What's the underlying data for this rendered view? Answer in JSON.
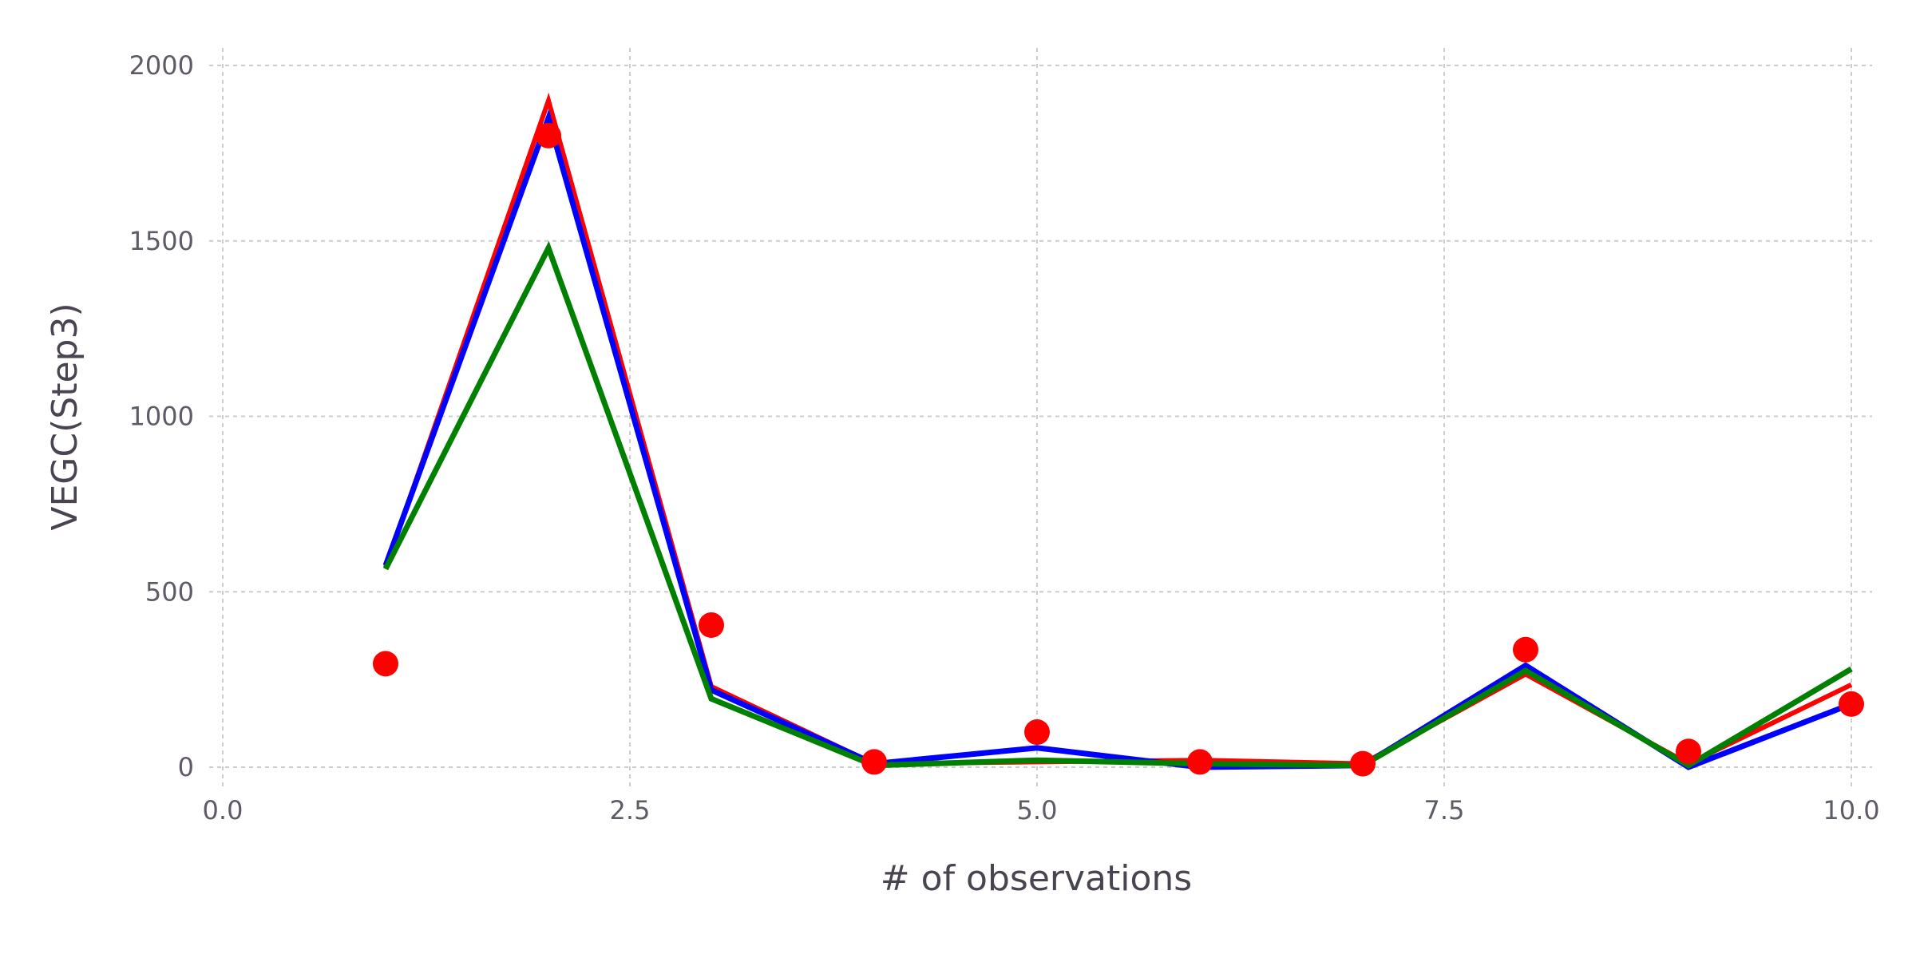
{
  "chart_data": {
    "type": "line",
    "title": "",
    "xlabel": "# of observations",
    "ylabel": "VEGC(Step3)",
    "xlim": [
      0,
      10
    ],
    "ylim": [
      -60,
      2050
    ],
    "x_ticks": [
      0,
      2.5,
      5,
      7.5,
      10
    ],
    "x_tick_labels": [
      "0.0",
      "2.5",
      "5.0",
      "7.5",
      "10.0"
    ],
    "y_ticks": [
      0,
      500,
      1000,
      1500,
      2000
    ],
    "y_tick_labels": [
      "0",
      "500",
      "1000",
      "1500",
      "2000"
    ],
    "grid": true,
    "legend": "none",
    "x": [
      1,
      2,
      3,
      4,
      5,
      6,
      7,
      8,
      9,
      10
    ],
    "series": [
      {
        "kind": "line",
        "color": "#ff0000",
        "values": [
          570,
          1900,
          230,
          10,
          15,
          20,
          10,
          265,
          10,
          235
        ]
      },
      {
        "kind": "line",
        "color": "#0000ff",
        "values": [
          575,
          1850,
          220,
          10,
          55,
          0,
          5,
          290,
          0,
          180
        ]
      },
      {
        "kind": "line",
        "color": "#008000",
        "values": [
          565,
          1480,
          195,
          5,
          20,
          10,
          5,
          275,
          5,
          280
        ]
      },
      {
        "kind": "points",
        "color": "#ff0000",
        "values": [
          295,
          1800,
          405,
          15,
          100,
          15,
          10,
          335,
          45,
          180
        ]
      }
    ]
  }
}
